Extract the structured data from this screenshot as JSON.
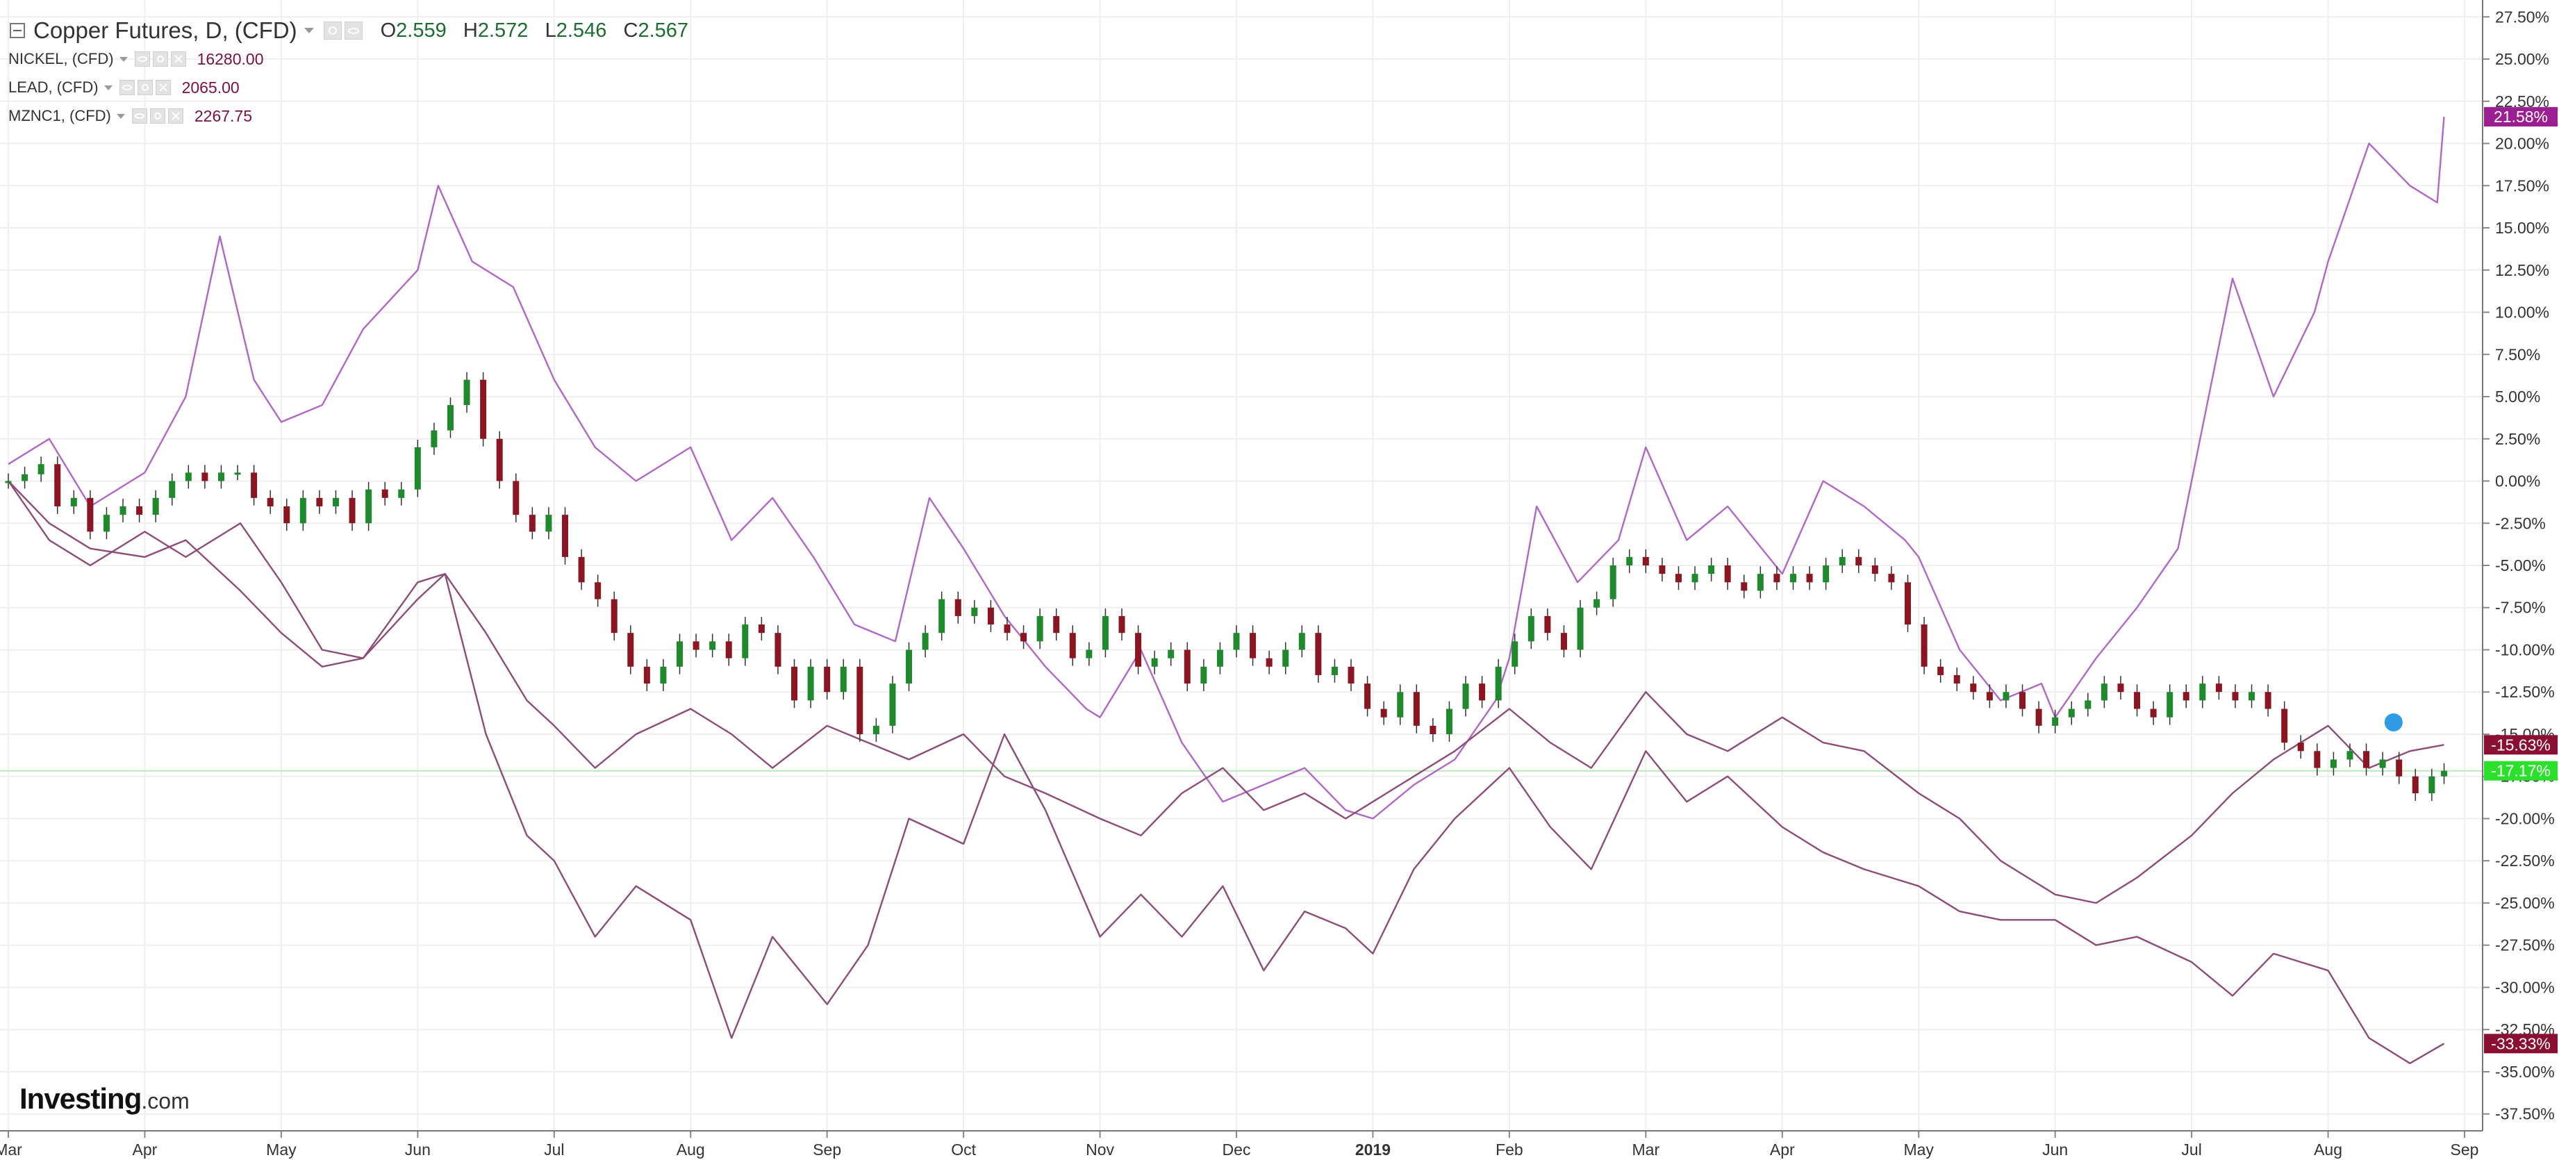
{
  "header": {
    "title": "Copper Futures, D, (CFD)",
    "ohlc": [
      {
        "label": "O",
        "value": "2.559"
      },
      {
        "label": "H",
        "value": "2.572"
      },
      {
        "label": "L",
        "value": "2.546"
      },
      {
        "label": "C",
        "value": "2.567"
      }
    ]
  },
  "comparisons": [
    {
      "name": "NICKEL, (CFD)",
      "value": "16280.00"
    },
    {
      "name": "LEAD, (CFD)",
      "value": "2065.00"
    },
    {
      "name": "MZNC1, (CFD)",
      "value": "2267.75"
    }
  ],
  "brand": {
    "name": "Investing",
    "suffix": ".com"
  },
  "colors": {
    "up": "#1e8a2c",
    "down": "#8b1520",
    "nickel_line": "#b267c8",
    "base_lines": "#8e4d78",
    "current_line": "#b8ecb8",
    "badge_green": "#2be02b",
    "badge_nickel": "#9b1f92",
    "badge_dark": "#8a0f33"
  },
  "chart_data": {
    "type": "line",
    "title": "Copper Futures, D, (CFD)",
    "xlabel": "",
    "ylabel": "",
    "ylim": [
      -38.5,
      28.5
    ],
    "y_scale": "percent change from first bar",
    "grid": true,
    "x_ticks": [
      "Mar",
      "Apr",
      "May",
      "Jun",
      "Jul",
      "Aug",
      "Sep",
      "Oct",
      "Nov",
      "Dec",
      "2019",
      "Feb",
      "Mar",
      "Apr",
      "May",
      "Jun",
      "Jul",
      "Aug",
      "Sep"
    ],
    "x_tick_positions": [
      0,
      1,
      2,
      3,
      4,
      5,
      6,
      7,
      8,
      9,
      10,
      11,
      12,
      13,
      14,
      15,
      16,
      17,
      18
    ],
    "x_range": [
      0,
      18.0
    ],
    "y_ticks": [
      "27.50%",
      "25.00%",
      "22.50%",
      "20.00%",
      "17.50%",
      "15.00%",
      "12.50%",
      "10.00%",
      "7.50%",
      "5.00%",
      "2.50%",
      "0.00%",
      "-2.50%",
      "-5.00%",
      "-7.50%",
      "-10.00%",
      "-12.50%",
      "-15.00%",
      "-17.50%",
      "-20.00%",
      "-22.50%",
      "-25.00%",
      "-27.50%",
      "-30.00%",
      "-32.50%",
      "-35.00%",
      "-37.50%"
    ],
    "y_tick_values": [
      27.5,
      25,
      22.5,
      20,
      17.5,
      15,
      12.5,
      10,
      7.5,
      5,
      2.5,
      0,
      -2.5,
      -5,
      -7.5,
      -10,
      -12.5,
      -15,
      -17.5,
      -20,
      -22.5,
      -25,
      -27.5,
      -30,
      -32.5,
      -35,
      -37.5
    ],
    "series": [
      {
        "name": "NICKEL, (CFD)",
        "label": "21.58%",
        "x": [
          0,
          0.3,
          0.6,
          1.0,
          1.3,
          1.55,
          1.8,
          2.0,
          2.3,
          2.6,
          3.0,
          3.15,
          3.4,
          3.7,
          4.0,
          4.3,
          4.6,
          5.0,
          5.3,
          5.6,
          5.9,
          6.2,
          6.5,
          6.75,
          7.0,
          7.3,
          7.6,
          7.9,
          8.0,
          8.3,
          8.6,
          8.9,
          9.2,
          9.5,
          9.8,
          10.0,
          10.3,
          10.6,
          10.9,
          11.0,
          11.2,
          11.5,
          11.8,
          12.0,
          12.3,
          12.6,
          12.9,
          13.0,
          13.3,
          13.6,
          13.9,
          14.0,
          14.3,
          14.6,
          14.9,
          15.0,
          15.3,
          15.6,
          15.9,
          16.0,
          16.3,
          16.6,
          16.9,
          17.0,
          17.3,
          17.6,
          17.8,
          17.85
        ],
        "y": [
          1.0,
          2.5,
          -1.5,
          0.5,
          5.0,
          14.5,
          6.0,
          3.5,
          4.5,
          9.0,
          12.5,
          17.5,
          13.0,
          11.5,
          6.0,
          2.0,
          0.0,
          2.0,
          -3.5,
          -1.0,
          -4.5,
          -8.5,
          -9.5,
          -1.0,
          -4.0,
          -8.0,
          -11.0,
          -13.5,
          -14.0,
          -10.0,
          -15.5,
          -19.0,
          -18.0,
          -17.0,
          -19.5,
          -20.0,
          -18.0,
          -16.5,
          -13.0,
          -10.5,
          -1.5,
          -6.0,
          -3.5,
          2.0,
          -3.5,
          -1.5,
          -4.5,
          -5.5,
          0.0,
          -1.5,
          -3.5,
          -4.5,
          -10.0,
          -13.0,
          -12.0,
          -14.0,
          -10.5,
          -7.5,
          -4.0,
          0.0,
          12.0,
          5.0,
          10.0,
          13.0,
          20.0,
          17.5,
          16.5,
          21.58
        ]
      },
      {
        "name": "LEAD, (CFD)",
        "label": "-15.63%",
        "x": [
          0,
          0.3,
          0.6,
          1.0,
          1.3,
          1.7,
          2.0,
          2.3,
          2.6,
          3.0,
          3.2,
          3.5,
          3.8,
          4.0,
          4.3,
          4.6,
          5.0,
          5.3,
          5.6,
          6.0,
          6.3,
          6.6,
          7.0,
          7.3,
          7.6,
          8.0,
          8.3,
          8.6,
          8.9,
          9.2,
          9.5,
          9.8,
          10.0,
          10.3,
          10.6,
          11.0,
          11.3,
          11.6,
          12.0,
          12.3,
          12.6,
          13.0,
          13.3,
          13.6,
          14.0,
          14.3,
          14.6,
          15.0,
          15.3,
          15.6,
          16.0,
          16.3,
          16.6,
          17.0,
          17.3,
          17.6,
          17.85
        ],
        "y": [
          0.0,
          -2.5,
          -4.0,
          -4.5,
          -3.5,
          -6.5,
          -9.0,
          -11.0,
          -10.5,
          -7.0,
          -5.5,
          -9.0,
          -13.0,
          -14.5,
          -17.0,
          -15.0,
          -13.5,
          -15.0,
          -17.0,
          -14.5,
          -15.5,
          -16.5,
          -15.0,
          -17.5,
          -18.5,
          -20.0,
          -21.0,
          -18.5,
          -17.0,
          -19.5,
          -18.5,
          -20.0,
          -19.0,
          -17.5,
          -16.0,
          -13.5,
          -15.5,
          -17.0,
          -12.5,
          -15.0,
          -16.0,
          -14.0,
          -15.5,
          -16.0,
          -18.5,
          -20.0,
          -22.5,
          -24.5,
          -25.0,
          -23.5,
          -21.0,
          -18.5,
          -16.5,
          -14.5,
          -17.0,
          -16.0,
          -15.63
        ]
      },
      {
        "name": "MZNC1, (CFD)",
        "label": "-33.33%",
        "x": [
          0,
          0.3,
          0.6,
          1.0,
          1.3,
          1.7,
          2.0,
          2.3,
          2.6,
          3.0,
          3.2,
          3.5,
          3.8,
          4.0,
          4.3,
          4.6,
          5.0,
          5.3,
          5.6,
          6.0,
          6.3,
          6.6,
          7.0,
          7.3,
          7.6,
          8.0,
          8.3,
          8.6,
          8.9,
          9.2,
          9.5,
          9.8,
          10.0,
          10.3,
          10.6,
          11.0,
          11.3,
          11.6,
          12.0,
          12.3,
          12.6,
          13.0,
          13.3,
          13.6,
          14.0,
          14.3,
          14.6,
          15.0,
          15.3,
          15.6,
          16.0,
          16.3,
          16.6,
          17.0,
          17.3,
          17.6,
          17.85
        ],
        "y": [
          0.0,
          -3.5,
          -5.0,
          -3.0,
          -4.5,
          -2.5,
          -6.0,
          -10.0,
          -10.5,
          -6.0,
          -5.5,
          -15.0,
          -21.0,
          -22.5,
          -27.0,
          -24.0,
          -26.0,
          -33.0,
          -27.0,
          -31.0,
          -27.5,
          -20.0,
          -21.5,
          -15.0,
          -19.5,
          -27.0,
          -24.5,
          -27.0,
          -24.0,
          -29.0,
          -25.5,
          -26.5,
          -28.0,
          -23.0,
          -20.0,
          -17.0,
          -20.5,
          -23.0,
          -16.0,
          -19.0,
          -17.5,
          -20.5,
          -22.0,
          -23.0,
          -24.0,
          -25.5,
          -26.0,
          -26.0,
          -27.5,
          -27.0,
          -28.5,
          -30.5,
          -28.0,
          -29.0,
          -33.0,
          -34.5,
          -33.33
        ]
      }
    ],
    "copper_candles": {
      "label": "-17.17%",
      "x": [
        0.0,
        0.12,
        0.24,
        0.36,
        0.48,
        0.6,
        0.72,
        0.84,
        0.96,
        1.08,
        1.2,
        1.32,
        1.44,
        1.56,
        1.68,
        1.8,
        1.92,
        2.04,
        2.16,
        2.28,
        2.4,
        2.52,
        2.64,
        2.76,
        2.88,
        3.0,
        3.12,
        3.24,
        3.36,
        3.48,
        3.6,
        3.72,
        3.84,
        3.96,
        4.08,
        4.2,
        4.32,
        4.44,
        4.56,
        4.68,
        4.8,
        4.92,
        5.04,
        5.16,
        5.28,
        5.4,
        5.52,
        5.64,
        5.76,
        5.88,
        6.0,
        6.12,
        6.24,
        6.36,
        6.48,
        6.6,
        6.72,
        6.84,
        6.96,
        7.08,
        7.2,
        7.32,
        7.44,
        7.56,
        7.68,
        7.8,
        7.92,
        8.04,
        8.16,
        8.28,
        8.4,
        8.52,
        8.64,
        8.76,
        8.88,
        9.0,
        9.12,
        9.24,
        9.36,
        9.48,
        9.6,
        9.72,
        9.84,
        9.96,
        10.08,
        10.2,
        10.32,
        10.44,
        10.56,
        10.68,
        10.8,
        10.92,
        11.04,
        11.16,
        11.28,
        11.4,
        11.52,
        11.64,
        11.76,
        11.88,
        12.0,
        12.12,
        12.24,
        12.36,
        12.48,
        12.6,
        12.72,
        12.84,
        12.96,
        13.08,
        13.2,
        13.32,
        13.44,
        13.56,
        13.68,
        13.8,
        13.92,
        14.04,
        14.16,
        14.28,
        14.4,
        14.52,
        14.64,
        14.76,
        14.88,
        15.0,
        15.12,
        15.24,
        15.36,
        15.48,
        15.6,
        15.72,
        15.84,
        15.96,
        16.08,
        16.2,
        16.32,
        16.44,
        16.56,
        16.68,
        16.8,
        16.92,
        17.04,
        17.16,
        17.28,
        17.4,
        17.52,
        17.64,
        17.76,
        17.85
      ],
      "close": [
        0.0,
        0.4,
        1.0,
        -1.5,
        -1.0,
        -3.0,
        -2.0,
        -1.5,
        -2.0,
        -1.0,
        0.0,
        0.5,
        0.0,
        0.5,
        0.5,
        -1.0,
        -1.5,
        -2.5,
        -1.0,
        -1.5,
        -1.0,
        -2.5,
        -0.5,
        -1.0,
        -0.5,
        2.0,
        3.0,
        4.5,
        6.0,
        2.5,
        0.0,
        -2.0,
        -3.0,
        -2.0,
        -4.5,
        -6.0,
        -7.0,
        -9.0,
        -11.0,
        -12.0,
        -11.0,
        -9.5,
        -10.0,
        -9.5,
        -10.5,
        -8.5,
        -9.0,
        -11.0,
        -13.0,
        -11.0,
        -12.5,
        -11.0,
        -15.0,
        -14.5,
        -12.0,
        -10.0,
        -9.0,
        -7.0,
        -8.0,
        -7.5,
        -8.5,
        -9.0,
        -9.5,
        -8.0,
        -9.0,
        -10.5,
        -10.0,
        -8.0,
        -9.0,
        -11.0,
        -10.5,
        -10.0,
        -12.0,
        -11.0,
        -10.0,
        -9.0,
        -10.5,
        -11.0,
        -10.0,
        -9.0,
        -11.5,
        -11.0,
        -12.0,
        -13.5,
        -14.0,
        -12.5,
        -14.5,
        -15.0,
        -13.5,
        -12.0,
        -13.0,
        -11.0,
        -9.5,
        -8.0,
        -9.0,
        -10.0,
        -7.5,
        -7.0,
        -5.0,
        -4.5,
        -5.0,
        -5.5,
        -6.0,
        -5.5,
        -5.0,
        -6.0,
        -6.5,
        -5.5,
        -6.0,
        -5.5,
        -6.0,
        -5.0,
        -4.5,
        -5.0,
        -5.5,
        -6.0,
        -8.5,
        -11.0,
        -11.5,
        -12.0,
        -12.5,
        -13.0,
        -12.5,
        -13.5,
        -14.5,
        -14.0,
        -13.5,
        -13.0,
        -12.0,
        -12.5,
        -13.5,
        -14.0,
        -12.5,
        -13.0,
        -12.0,
        -12.5,
        -13.0,
        -12.5,
        -13.5,
        -15.5,
        -16.0,
        -17.0,
        -16.5,
        -16.0,
        -17.0,
        -16.5,
        -17.5,
        -18.5,
        -17.5,
        -17.17
      ]
    }
  }
}
